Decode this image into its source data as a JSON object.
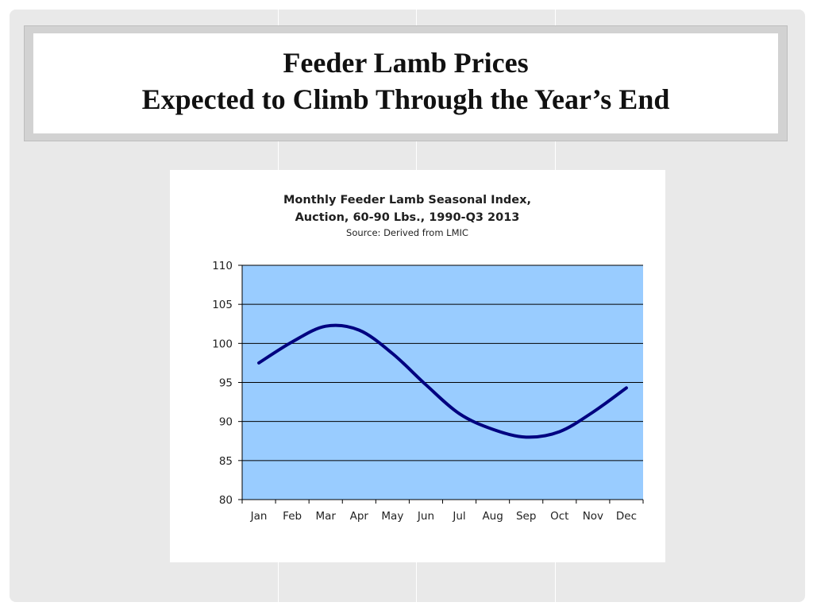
{
  "slide": {
    "title_line1": "Feeder Lamb Prices",
    "title_line2": "Expected to Climb Through the Year’s End"
  },
  "colors": {
    "plot_background": "#99ccff",
    "line": "#000080",
    "gridline": "#000000"
  },
  "chart_data": {
    "type": "line",
    "title": "Monthly Feeder Lamb Seasonal Index,",
    "subtitle": "Auction, 60-90 Lbs., 1990-Q3 2013",
    "source": "Source: Derived from LMIC",
    "xlabel": "",
    "ylabel": "",
    "categories": [
      "Jan",
      "Feb",
      "Mar",
      "Apr",
      "May",
      "Jun",
      "Jul",
      "Aug",
      "Sep",
      "Oct",
      "Nov",
      "Dec"
    ],
    "series": [
      {
        "values": [
          97.5,
          100.2,
          102.2,
          101.7,
          98.7,
          94.7,
          91.0,
          89.0,
          88.0,
          88.7,
          91.2,
          94.3
        ]
      }
    ],
    "ylim": [
      80,
      110
    ],
    "yticks": [
      80,
      85,
      90,
      95,
      100,
      105,
      110
    ],
    "grid": true,
    "legend": "none"
  }
}
